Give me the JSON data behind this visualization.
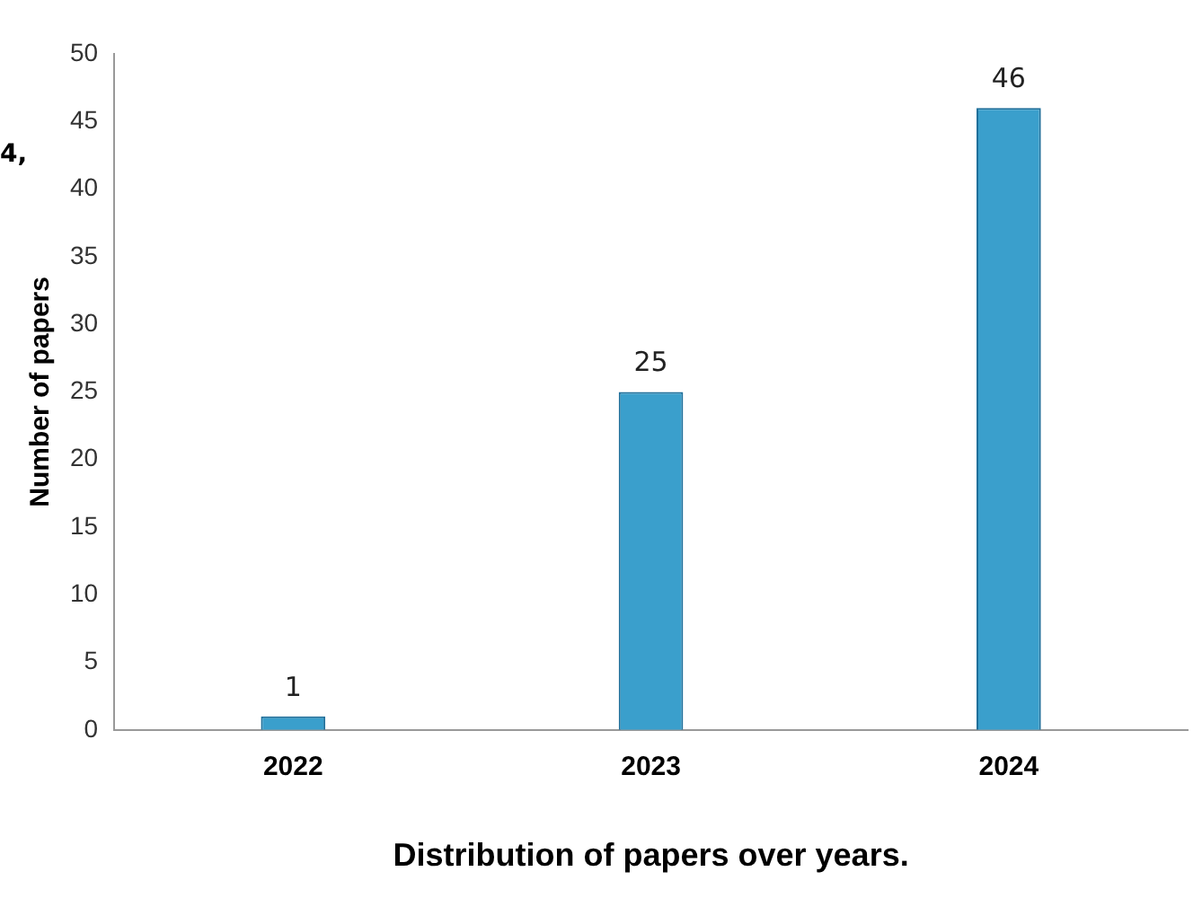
{
  "chart_data": {
    "type": "bar",
    "xlabel": "Distribution of papers over years.",
    "ylabel": "Number of papers",
    "categories": [
      "2022",
      "2023",
      "2024"
    ],
    "values": [
      1,
      25,
      46
    ],
    "color": "#3a9fcc",
    "ylim": [
      0,
      50
    ],
    "yticks": [
      0,
      5,
      10,
      15,
      20,
      25,
      30,
      35,
      40,
      45,
      50
    ],
    "grid": false,
    "data_labels": true,
    "annotations": [
      "4,"
    ]
  }
}
